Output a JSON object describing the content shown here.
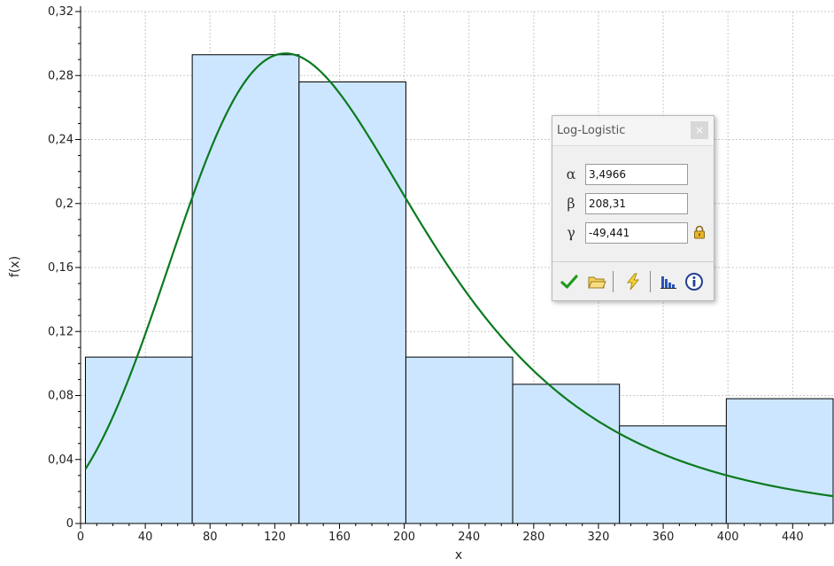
{
  "chart_data": {
    "type": "bar",
    "bins": [
      {
        "x0": 3,
        "x1": 69,
        "density": 0.104
      },
      {
        "x0": 69,
        "x1": 135,
        "density": 0.293
      },
      {
        "x0": 135,
        "x1": 201,
        "density": 0.276
      },
      {
        "x0": 201,
        "x1": 267,
        "density": 0.104
      },
      {
        "x0": 267,
        "x1": 333,
        "density": 0.087
      },
      {
        "x0": 333,
        "x1": 399,
        "density": 0.061
      },
      {
        "x0": 399,
        "x1": 465,
        "density": 0.078
      }
    ],
    "xlabel": "x",
    "ylabel": "f(x)",
    "xlim": [
      0,
      465
    ],
    "ylim": [
      0,
      0.32
    ],
    "xticks": [
      0,
      40,
      80,
      120,
      160,
      200,
      240,
      280,
      320,
      360,
      400,
      440
    ],
    "xtick_labels": [
      "0",
      "40",
      "80",
      "120",
      "160",
      "200",
      "240",
      "280",
      "320",
      "360",
      "400",
      "440"
    ],
    "yticks": [
      0,
      0.04,
      0.08,
      0.12,
      0.16,
      0.2,
      0.24,
      0.28,
      0.32
    ],
    "ytick_labels": [
      "0",
      "0,04",
      "0,08",
      "0,12",
      "0,16",
      "0,2",
      "0,24",
      "0,28",
      "0,32"
    ],
    "grid": true,
    "fit_curve": {
      "distribution": "Log-Logistic",
      "alpha": 3.4966,
      "beta": 208.31,
      "gamma": -49.441,
      "density_scale": 0.0645,
      "x_range": [
        3,
        465
      ]
    },
    "colors": {
      "bar_fill": "#cce6ff",
      "bar_stroke": "#000000",
      "curve": "#0a7a1e",
      "grid": "#c8c8c8"
    }
  },
  "panel": {
    "title": "Log-Logistic",
    "close_glyph": "×",
    "params": [
      {
        "symbol": "α",
        "value": "3,4966"
      },
      {
        "symbol": "β",
        "value": "208,31"
      },
      {
        "symbol": "γ",
        "value": "-49,441"
      }
    ],
    "toolbar": [
      "check-icon",
      "folder-icon",
      "lightning-icon",
      "histogram-icon",
      "info-icon"
    ]
  }
}
